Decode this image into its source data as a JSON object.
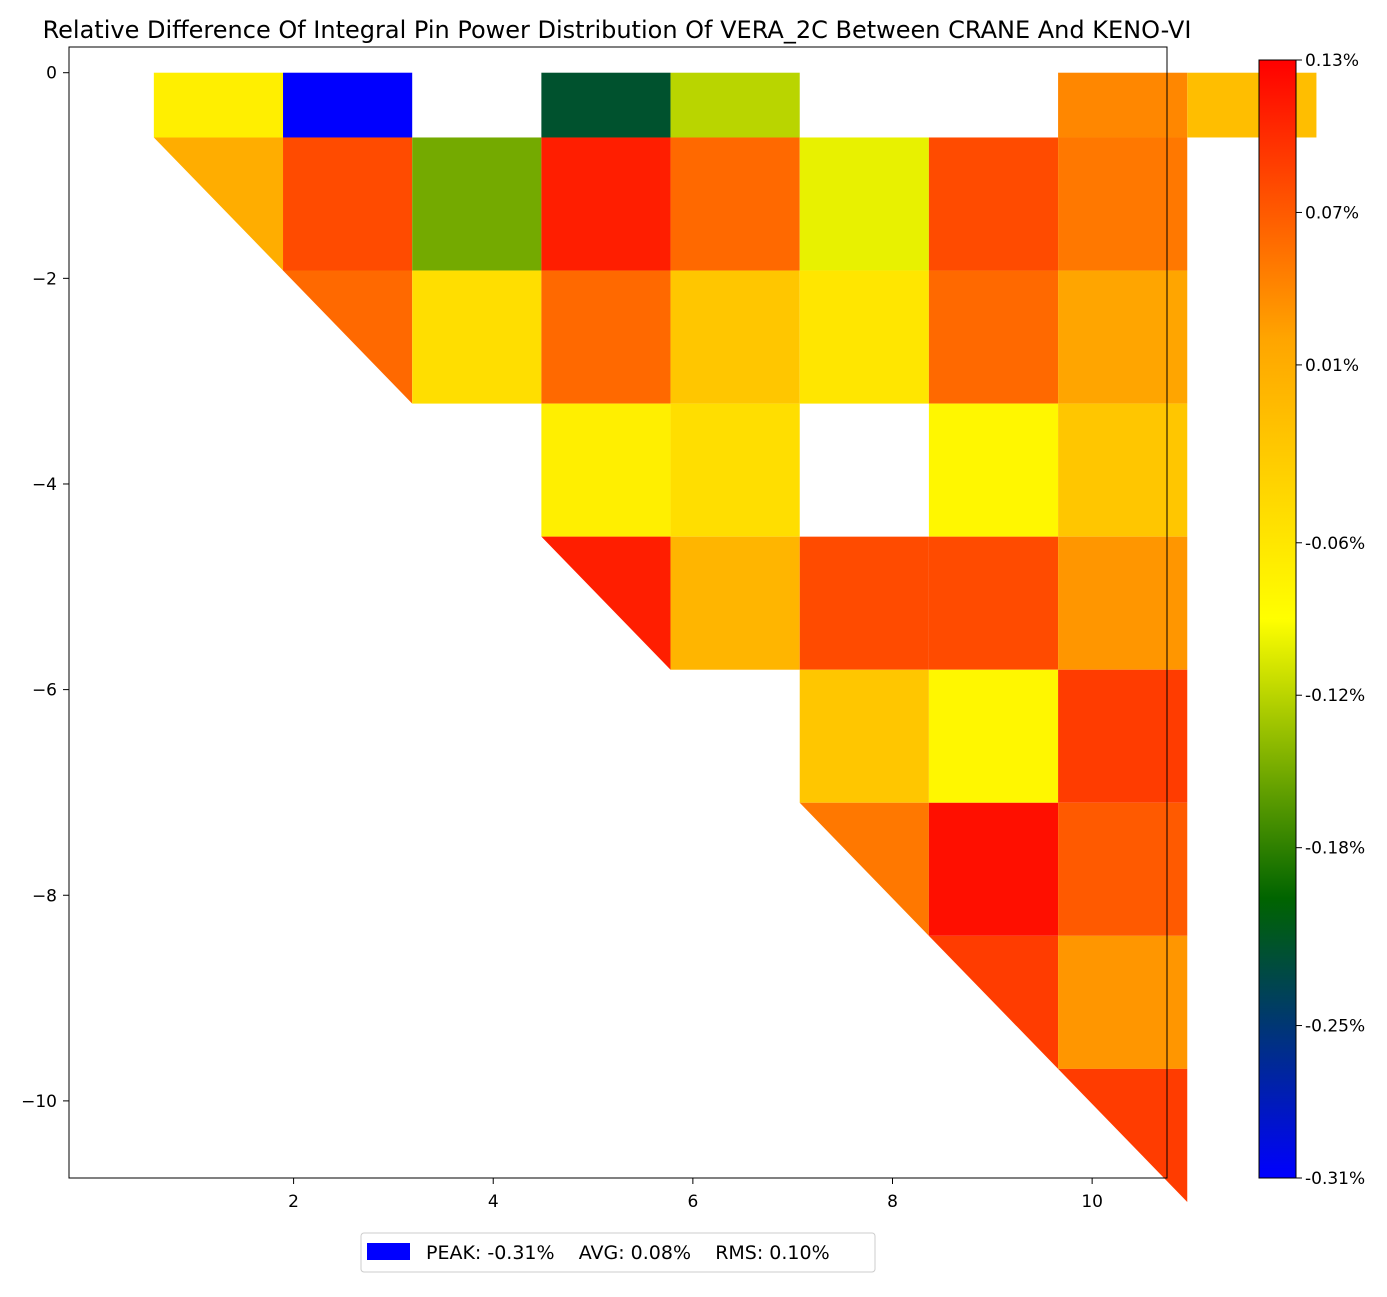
{
  "chart_data": {
    "type": "heatmap",
    "title": "Relative Difference Of Integral Pin Power Distribution Of VERA_2C Between CRANE And KENO-VI",
    "xlabel": "",
    "ylabel": "",
    "unit": "%",
    "xlim": [
      -0.25,
      10.75
    ],
    "ylim": [
      -10.75,
      0.25
    ],
    "x_ticks": [
      2,
      4,
      6,
      8,
      10
    ],
    "x_tick_labels": [
      "2",
      "4",
      "6",
      "8",
      "10"
    ],
    "y_ticks": [
      0,
      -2,
      -4,
      -6,
      -8,
      -10
    ],
    "y_tick_labels": [
      "0",
      "−2",
      "−4",
      "−6",
      "−8",
      "−10"
    ],
    "colorbar": {
      "min": -0.31,
      "max": 0.13,
      "ticks": [
        0.13,
        0.07,
        0.01,
        -0.06,
        -0.12,
        -0.18,
        -0.25,
        -0.31
      ],
      "tick_labels": [
        "0.13%",
        "0.07%",
        "0.01%",
        "-0.06%",
        "-0.12%",
        "-0.18%",
        "-0.25%",
        "-0.31%"
      ],
      "colors": [
        "#0000ff",
        "#006400",
        "#ffff00",
        "#ffa500",
        "#ff0000"
      ]
    },
    "cells": [
      {
        "row": 0,
        "col": 1,
        "value": -0.07,
        "shape": "full"
      },
      {
        "row": 0,
        "col": 2,
        "value": -0.31,
        "shape": "full"
      },
      {
        "row": 0,
        "col": 4,
        "value": -0.22,
        "shape": "full"
      },
      {
        "row": 0,
        "col": 5,
        "value": -0.12,
        "shape": "full"
      },
      {
        "row": 0,
        "col": 8,
        "value": 0.04,
        "shape": "full"
      },
      {
        "row": 0,
        "col": 9,
        "value": -0.01,
        "shape": "full"
      },
      {
        "row": 1,
        "col": 1,
        "value": 0.01,
        "shape": "lower"
      },
      {
        "row": 1,
        "col": 2,
        "value": 0.08,
        "shape": "full"
      },
      {
        "row": 1,
        "col": 3,
        "value": -0.15,
        "shape": "full"
      },
      {
        "row": 1,
        "col": 4,
        "value": 0.11,
        "shape": "full"
      },
      {
        "row": 1,
        "col": 5,
        "value": 0.06,
        "shape": "full"
      },
      {
        "row": 1,
        "col": 6,
        "value": -0.1,
        "shape": "full"
      },
      {
        "row": 1,
        "col": 7,
        "value": 0.08,
        "shape": "full"
      },
      {
        "row": 1,
        "col": 8,
        "value": 0.05,
        "shape": "full"
      },
      {
        "row": 2,
        "col": 2,
        "value": 0.06,
        "shape": "lower"
      },
      {
        "row": 2,
        "col": 3,
        "value": -0.05,
        "shape": "full"
      },
      {
        "row": 2,
        "col": 4,
        "value": 0.06,
        "shape": "full"
      },
      {
        "row": 2,
        "col": 5,
        "value": -0.02,
        "shape": "full"
      },
      {
        "row": 2,
        "col": 6,
        "value": -0.06,
        "shape": "full"
      },
      {
        "row": 2,
        "col": 7,
        "value": 0.06,
        "shape": "full"
      },
      {
        "row": 2,
        "col": 8,
        "value": 0.02,
        "shape": "full"
      },
      {
        "row": 3,
        "col": 4,
        "value": -0.07,
        "shape": "full"
      },
      {
        "row": 3,
        "col": 5,
        "value": -0.05,
        "shape": "full"
      },
      {
        "row": 3,
        "col": 7,
        "value": -0.08,
        "shape": "full"
      },
      {
        "row": 3,
        "col": 8,
        "value": -0.02,
        "shape": "full"
      },
      {
        "row": 4,
        "col": 4,
        "value": 0.11,
        "shape": "lower"
      },
      {
        "row": 4,
        "col": 5,
        "value": 0.0,
        "shape": "full"
      },
      {
        "row": 4,
        "col": 6,
        "value": 0.08,
        "shape": "full"
      },
      {
        "row": 4,
        "col": 7,
        "value": 0.08,
        "shape": "full"
      },
      {
        "row": 4,
        "col": 8,
        "value": 0.03,
        "shape": "full"
      },
      {
        "row": 5,
        "col": 6,
        "value": -0.02,
        "shape": "full"
      },
      {
        "row": 5,
        "col": 7,
        "value": -0.08,
        "shape": "full"
      },
      {
        "row": 5,
        "col": 8,
        "value": 0.09,
        "shape": "full"
      },
      {
        "row": 6,
        "col": 6,
        "value": 0.05,
        "shape": "lower"
      },
      {
        "row": 6,
        "col": 7,
        "value": 0.12,
        "shape": "full"
      },
      {
        "row": 6,
        "col": 8,
        "value": 0.07,
        "shape": "full"
      },
      {
        "row": 7,
        "col": 7,
        "value": 0.09,
        "shape": "lower"
      },
      {
        "row": 7,
        "col": 8,
        "value": 0.03,
        "shape": "full"
      },
      {
        "row": 8,
        "col": 8,
        "value": 0.09,
        "shape": "lower"
      }
    ]
  },
  "legend": {
    "swatch_color": "#0000ff",
    "text": "PEAK: -0.31%    AVG: 0.08%    RMS: 0.10%"
  }
}
